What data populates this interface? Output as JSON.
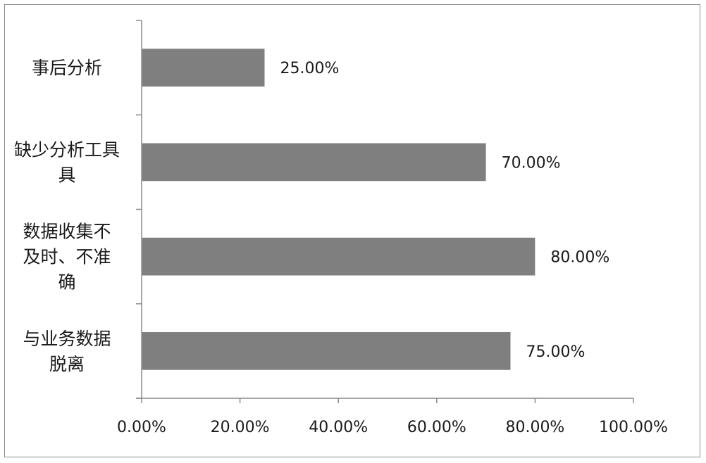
{
  "chart_data": {
    "type": "bar",
    "orientation": "horizontal",
    "categories": [
      "事后分析",
      "缺少分析工具",
      "数据收集不及时、不准确",
      "与业务数据脱离"
    ],
    "category_lines": [
      [
        "事后分析"
      ],
      [
        "缺少分析工具",
        "具"
      ],
      [
        "数据收集不",
        "及时、不准",
        "确"
      ],
      [
        "与业务数据",
        "脱离"
      ]
    ],
    "values": [
      25,
      70,
      80,
      75
    ],
    "value_labels": [
      "25.00%",
      "70.00%",
      "80.00%",
      "75.00%"
    ],
    "xlim": [
      0,
      100
    ],
    "xticks": [
      0,
      20,
      40,
      60,
      80,
      100
    ],
    "xtick_labels": [
      "0.00%",
      "20.00%",
      "40.00%",
      "60.00%",
      "80.00%",
      "100.00%"
    ],
    "title": "",
    "xlabel": "",
    "ylabel": "",
    "grid": false,
    "legend": "none",
    "bar_color": "#7f7f80",
    "axis_color": "#8a8a8a"
  }
}
